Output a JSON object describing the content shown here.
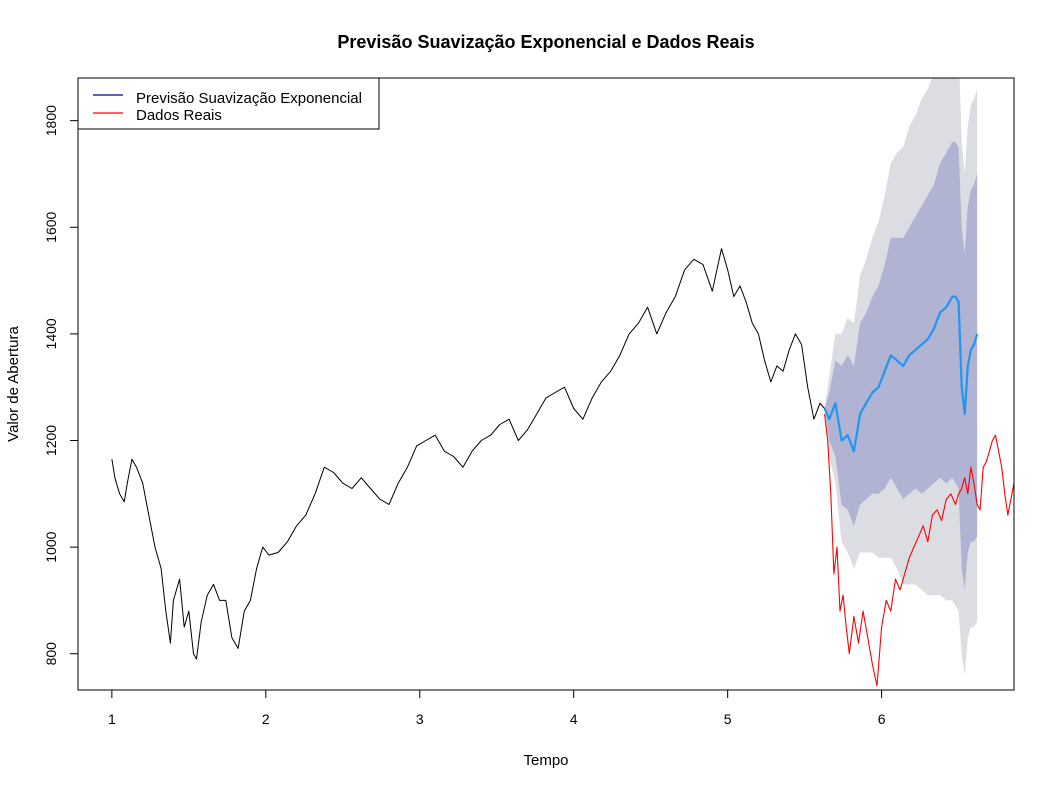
{
  "chart_data": {
    "type": "line",
    "title": "Previsão Suavização Exponencial e Dados Reais",
    "xlabel": "Tempo",
    "ylabel": "Valor de Abertura",
    "xlim": [
      0.78,
      6.86
    ],
    "ylim": [
      732,
      1880
    ],
    "x_ticks": [
      1,
      2,
      3,
      4,
      5,
      6
    ],
    "y_ticks": [
      800,
      1000,
      1200,
      1400,
      1600,
      1800
    ],
    "grid": false,
    "legend": {
      "position": "top-left",
      "entries": [
        {
          "label": "Previsão Suavização Exponencial",
          "color": "#00008b"
        },
        {
          "label": "Dados Reais",
          "color": "#ff0000"
        }
      ]
    },
    "colors": {
      "history": "#000000",
      "forecast": "#2196f3",
      "actual": "#ff0000",
      "ci80": "#b0b3d2",
      "ci95": "#dcdce3"
    },
    "series": [
      {
        "role": "history",
        "x": [
          1.0,
          1.02,
          1.05,
          1.08,
          1.1,
          1.13,
          1.16,
          1.2,
          1.24,
          1.28,
          1.32,
          1.35,
          1.38,
          1.4,
          1.44,
          1.47,
          1.5,
          1.53,
          1.55,
          1.58,
          1.62,
          1.66,
          1.7,
          1.74,
          1.78,
          1.82,
          1.86,
          1.9,
          1.94,
          1.98,
          2.02,
          2.08,
          2.14,
          2.2,
          2.26,
          2.32,
          2.38,
          2.44,
          2.5,
          2.56,
          2.62,
          2.68,
          2.74,
          2.8,
          2.86,
          2.92,
          2.98,
          3.04,
          3.1,
          3.16,
          3.22,
          3.28,
          3.34,
          3.4,
          3.46,
          3.52,
          3.58,
          3.64,
          3.7,
          3.76,
          3.82,
          3.88,
          3.94,
          4.0,
          4.06,
          4.12,
          4.18,
          4.24,
          4.3,
          4.36,
          4.42,
          4.48,
          4.54,
          4.6,
          4.66,
          4.72,
          4.78,
          4.84,
          4.9,
          4.96,
          5.0,
          5.04,
          5.08,
          5.12,
          5.16,
          5.2,
          5.24,
          5.28,
          5.32,
          5.36,
          5.4,
          5.44,
          5.48,
          5.52,
          5.56,
          5.6,
          5.63
        ],
        "values": [
          1165,
          1130,
          1100,
          1085,
          1120,
          1165,
          1150,
          1120,
          1060,
          1000,
          960,
          880,
          820,
          900,
          940,
          850,
          880,
          800,
          790,
          860,
          910,
          930,
          900,
          900,
          830,
          810,
          880,
          900,
          960,
          1000,
          985,
          990,
          1010,
          1040,
          1060,
          1100,
          1150,
          1140,
          1120,
          1110,
          1130,
          1110,
          1090,
          1080,
          1120,
          1150,
          1190,
          1200,
          1210,
          1180,
          1170,
          1150,
          1180,
          1200,
          1210,
          1230,
          1240,
          1200,
          1220,
          1250,
          1280,
          1290,
          1300,
          1260,
          1240,
          1280,
          1310,
          1330,
          1360,
          1400,
          1420,
          1450,
          1400,
          1440,
          1470,
          1520,
          1540,
          1530,
          1480,
          1560,
          1520,
          1470,
          1490,
          1460,
          1420,
          1400,
          1350,
          1310,
          1340,
          1330,
          1370,
          1400,
          1380,
          1300,
          1240,
          1270,
          1260
        ]
      },
      {
        "role": "forecast",
        "name": "Previsão Suavização Exponencial",
        "x": [
          5.63,
          5.66,
          5.7,
          5.74,
          5.78,
          5.82,
          5.86,
          5.9,
          5.94,
          5.98,
          6.02,
          6.06,
          6.1,
          6.14,
          6.18,
          6.22,
          6.26,
          6.3,
          6.34,
          6.38,
          6.42,
          6.46,
          6.48,
          6.5,
          6.52,
          6.54,
          6.56,
          6.58,
          6.6,
          6.62
        ],
        "values": [
          1260,
          1240,
          1270,
          1200,
          1210,
          1180,
          1250,
          1270,
          1290,
          1300,
          1330,
          1360,
          1350,
          1340,
          1360,
          1370,
          1380,
          1390,
          1410,
          1440,
          1450,
          1470,
          1470,
          1460,
          1300,
          1250,
          1340,
          1370,
          1380,
          1400
        ]
      },
      {
        "role": "actual",
        "name": "Dados Reais",
        "x": [
          5.63,
          5.65,
          5.67,
          5.69,
          5.71,
          5.73,
          5.75,
          5.77,
          5.79,
          5.82,
          5.85,
          5.88,
          5.91,
          5.94,
          5.97,
          6.0,
          6.03,
          6.06,
          6.09,
          6.12,
          6.15,
          6.18,
          6.21,
          6.24,
          6.27,
          6.3,
          6.33,
          6.36,
          6.39,
          6.42,
          6.45,
          6.48,
          6.5,
          6.52,
          6.54,
          6.56,
          6.58,
          6.6,
          6.62,
          6.64,
          6.66,
          6.68,
          6.7,
          6.72,
          6.74,
          6.76,
          6.78,
          6.8,
          6.82,
          6.84,
          6.86
        ],
        "values": [
          1250,
          1200,
          1100,
          950,
          1000,
          880,
          910,
          850,
          800,
          870,
          820,
          880,
          830,
          780,
          740,
          850,
          900,
          880,
          940,
          920,
          950,
          980,
          1000,
          1020,
          1040,
          1010,
          1060,
          1070,
          1050,
          1090,
          1100,
          1080,
          1100,
          1110,
          1130,
          1100,
          1150,
          1120,
          1080,
          1070,
          1150,
          1160,
          1180,
          1200,
          1210,
          1180,
          1150,
          1100,
          1060,
          1090,
          1120
        ]
      }
    ],
    "intervals": {
      "x": [
        5.63,
        5.66,
        5.7,
        5.74,
        5.78,
        5.82,
        5.86,
        5.9,
        5.94,
        5.98,
        6.02,
        6.06,
        6.1,
        6.14,
        6.18,
        6.22,
        6.26,
        6.3,
        6.34,
        6.38,
        6.42,
        6.46,
        6.48,
        6.5,
        6.52,
        6.54,
        6.56,
        6.58,
        6.6,
        6.62
      ],
      "lower80": [
        1260,
        1200,
        1170,
        1080,
        1070,
        1040,
        1080,
        1090,
        1100,
        1100,
        1110,
        1130,
        1110,
        1090,
        1100,
        1110,
        1100,
        1110,
        1120,
        1130,
        1120,
        1130,
        1120,
        1110,
        960,
        920,
        990,
        1010,
        1010,
        1020
      ],
      "upper80": [
        1260,
        1290,
        1350,
        1340,
        1360,
        1340,
        1420,
        1440,
        1470,
        1490,
        1530,
        1580,
        1580,
        1580,
        1600,
        1620,
        1640,
        1660,
        1680,
        1720,
        1740,
        1760,
        1760,
        1750,
        1600,
        1550,
        1640,
        1670,
        1680,
        1700
      ],
      "lower95": [
        1260,
        1170,
        1120,
        1010,
        990,
        960,
        990,
        990,
        990,
        980,
        980,
        980,
        960,
        930,
        930,
        930,
        920,
        910,
        910,
        910,
        900,
        900,
        890,
        880,
        800,
        760,
        830,
        850,
        850,
        860
      ],
      "upper95": [
        1260,
        1320,
        1400,
        1400,
        1430,
        1420,
        1510,
        1540,
        1580,
        1610,
        1660,
        1720,
        1740,
        1750,
        1790,
        1810,
        1840,
        1860,
        1890,
        1920,
        1940,
        1960,
        1950,
        1940,
        1760,
        1700,
        1790,
        1830,
        1840,
        1860
      ]
    }
  }
}
